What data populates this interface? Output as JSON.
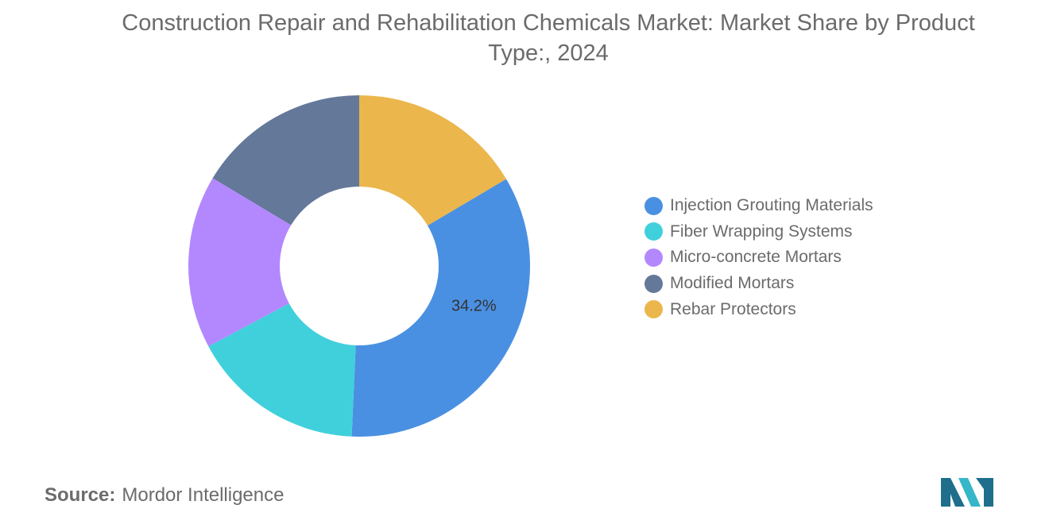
{
  "chart_data": {
    "type": "pie",
    "title": "Construction Repair and Rehabilitation Chemicals Market: Market Share by Product Type:, 2024",
    "categories": [
      "Injection Grouting Materials",
      "Fiber Wrapping Systems",
      "Micro-concrete Mortars",
      "Modified Mortars",
      "Rebar Protectors"
    ],
    "values": [
      34.2,
      16.5,
      16.4,
      16.4,
      16.5
    ],
    "colors": [
      "#4a90e2",
      "#40d0dc",
      "#b388ff",
      "#64789a",
      "#ebb64c"
    ],
    "data_labels": [
      "34.2%",
      "",
      "",
      "",
      ""
    ],
    "start_category": "Rebar Protectors",
    "direction": "clockwise",
    "donut": true,
    "legend_position": "right"
  },
  "source": {
    "label": "Source:",
    "text": "Mordor Intelligence"
  },
  "logo": {
    "icon": "mordor-intelligence-logo",
    "colors": [
      "#1e6e8c",
      "#36b6c9"
    ]
  }
}
